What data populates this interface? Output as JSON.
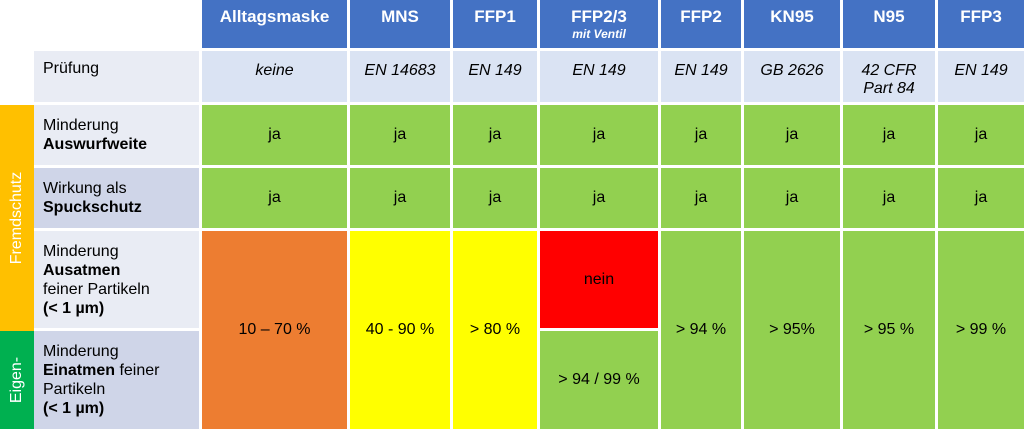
{
  "columns": [
    {
      "name": "Alltagsmaske",
      "sub": ""
    },
    {
      "name": "MNS",
      "sub": ""
    },
    {
      "name": "FFP1",
      "sub": ""
    },
    {
      "name": "FFP2/3",
      "sub": "mit Ventil"
    },
    {
      "name": "FFP2",
      "sub": ""
    },
    {
      "name": "KN95",
      "sub": ""
    },
    {
      "name": "N95",
      "sub": ""
    },
    {
      "name": "FFP3",
      "sub": ""
    }
  ],
  "pruefung": {
    "label": "Prüfung",
    "values": [
      "keine",
      "EN 14683",
      "EN 149",
      "EN 149",
      "EN 149",
      "GB 2626",
      "42 CFR Part 84",
      "EN 149"
    ]
  },
  "rows": {
    "auswurf": {
      "pre": "Minderung",
      "bold": "Auswurfweite",
      "post": "",
      "values": [
        "ja",
        "ja",
        "ja",
        "ja",
        "ja",
        "ja",
        "ja",
        "ja"
      ]
    },
    "spuck": {
      "pre": "Wirkung als",
      "bold": "Spuckschutz",
      "post": "",
      "values": [
        "ja",
        "ja",
        "ja",
        "ja",
        "ja",
        "ja",
        "ja",
        "ja"
      ]
    },
    "ausatmen": {
      "pre": "Minderung",
      "bold": "Ausatmen",
      "post": "feiner Partikeln",
      "bold2": "(< 1 µm)",
      "ffp23": "nein"
    },
    "einatmen": {
      "pre": "Minderung",
      "bold": "Einatmen",
      "post": " feiner Partikeln",
      "bold2": "(< 1 µm)",
      "ffp23": "> 94 / 99 %"
    },
    "combined": [
      "10 – 70 %",
      "40 - 90 %",
      "> 80 %",
      "> 94 %",
      "> 95%",
      "> 95 %",
      "> 99 %"
    ]
  },
  "side": {
    "fremdschutz": "Fremdschutz",
    "eigen": "Eigen-"
  },
  "colors": {
    "header": "#4472c4",
    "green": "#92d050",
    "orange": "#ed7d31",
    "yellow": "#ffff00",
    "red": "#ff0000",
    "side_orange": "#ffc000",
    "side_green": "#00b050"
  }
}
